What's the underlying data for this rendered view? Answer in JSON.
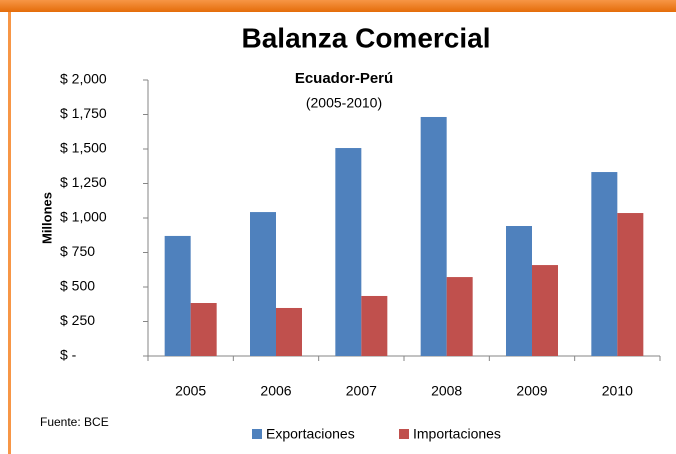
{
  "chart_data": {
    "type": "bar",
    "title": "Balanza Comercial",
    "subtitle": "Ecuador-Perú",
    "subtitle_2": "(2005-2010)",
    "y_label": "Millones",
    "source": "Fuente: BCE",
    "categories": [
      "2005",
      "2006",
      "2007",
      "2008",
      "2009",
      "2010"
    ],
    "series": [
      {
        "name": "Exportaciones",
        "color": "#4f81bd",
        "values": [
          870,
          1043,
          1507,
          1732,
          942,
          1333
        ]
      },
      {
        "name": "Importaciones",
        "color": "#c0504d",
        "values": [
          384,
          348,
          435,
          572,
          659,
          1036
        ]
      }
    ],
    "ylim": [
      0,
      2000
    ],
    "yticks": [
      {
        "value": 0,
        "label": "$ -"
      },
      {
        "value": 250,
        "label": "$ 250"
      },
      {
        "value": 500,
        "label": "$ 500"
      },
      {
        "value": 750,
        "label": "$ 750"
      },
      {
        "value": 1000,
        "label": "$ 1,000"
      },
      {
        "value": 1250,
        "label": "$ 1,250"
      },
      {
        "value": 1500,
        "label": "$ 1,500"
      },
      {
        "value": 1750,
        "label": "$ 1,750"
      },
      {
        "value": 2000,
        "label": "$ 2,000"
      }
    ],
    "grid": false,
    "legend": "bottom"
  }
}
